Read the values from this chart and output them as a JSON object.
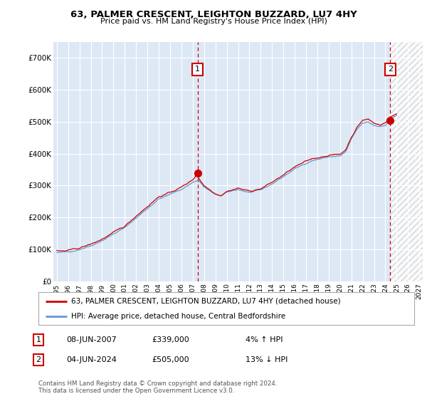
{
  "title": "63, PALMER CRESCENT, LEIGHTON BUZZARD, LU7 4HY",
  "subtitle": "Price paid vs. HM Land Registry's House Price Index (HPI)",
  "legend_line1": "63, PALMER CRESCENT, LEIGHTON BUZZARD, LU7 4HY (detached house)",
  "legend_line2": "HPI: Average price, detached house, Central Bedfordshire",
  "annotation1_date": "08-JUN-2007",
  "annotation1_price": "£339,000",
  "annotation1_pct": "4% ↑ HPI",
  "annotation2_date": "04-JUN-2024",
  "annotation2_price": "£505,000",
  "annotation2_pct": "13% ↓ HPI",
  "footnote": "Contains HM Land Registry data © Crown copyright and database right 2024.\nThis data is licensed under the Open Government Licence v3.0.",
  "house_color": "#cc0000",
  "hpi_color": "#6699cc",
  "annotation_color": "#cc0000",
  "background_color": "#ffffff",
  "plot_bg_color": "#dde8f5",
  "grid_color": "#ffffff",
  "fill_color": "#dde8f5",
  "hatch_color": "#cccccc",
  "ylim": [
    0,
    750000
  ],
  "yticks": [
    0,
    100000,
    200000,
    300000,
    400000,
    500000,
    600000,
    700000
  ],
  "ytick_labels": [
    "£0",
    "£100K",
    "£200K",
    "£300K",
    "£400K",
    "£500K",
    "£600K",
    "£700K"
  ],
  "xstart_year": 1995,
  "xend_year": 2027,
  "sale1_year": 2007.44,
  "sale1_price": 339000,
  "sale2_year": 2024.44,
  "sale2_price": 505000
}
